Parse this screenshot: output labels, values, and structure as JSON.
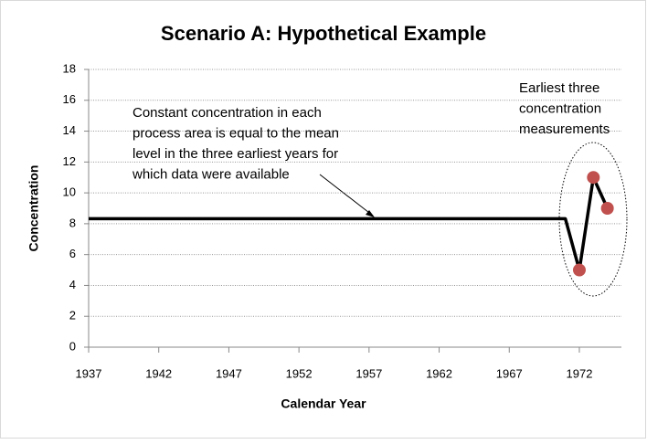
{
  "chart_data": {
    "type": "line",
    "title": "Scenario A: Hypothetical Example",
    "x_label": "Calendar Year",
    "y_label": "Concentration",
    "x": [
      1937,
      1971,
      1972,
      1973,
      1974
    ],
    "series": [
      {
        "color": "#000000",
        "values": [
          8.33,
          8.33,
          5,
          11,
          9
        ]
      },
      {
        "color": "#c0504d",
        "marker": true,
        "values": [
          null,
          null,
          5,
          11,
          9
        ]
      }
    ],
    "xlim": [
      1937,
      1975
    ],
    "xticks": [
      1937,
      1942,
      1947,
      1952,
      1957,
      1962,
      1967,
      1972
    ],
    "ylim": [
      0,
      18
    ],
    "yticks": [
      0,
      2,
      4,
      6,
      8,
      10,
      12,
      14,
      16,
      18
    ],
    "grid": true,
    "annotations": [
      [
        "Constant concentration in each",
        "process area is equal to the mean",
        "level in the three earliest years for",
        "which data were available"
      ],
      [
        "Earliest three",
        "concentration",
        "measurements"
      ]
    ]
  }
}
